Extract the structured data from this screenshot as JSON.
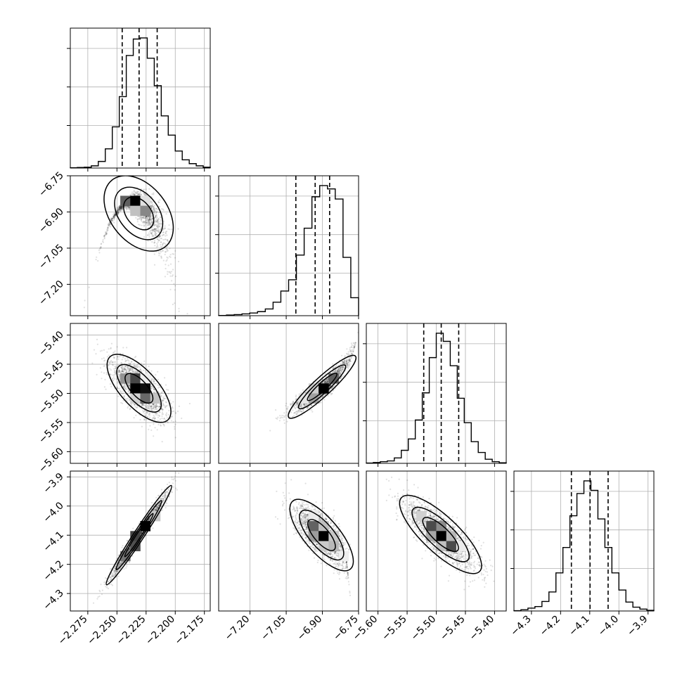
{
  "chart_data": {
    "type": "corner",
    "parameters": [
      {
        "ticks": [
          -2.275,
          -2.25,
          -2.225,
          -2.2,
          -2.175
        ],
        "tick_labels": [
          "−2.275",
          "−2.250",
          "−2.225",
          "−2.200",
          "−2.175"
        ],
        "range": [
          -2.29,
          -2.17
        ],
        "quantiles": [
          -2.2455,
          -2.231,
          -2.2155
        ],
        "histogram": [
          1,
          2,
          3,
          8,
          24,
          70,
          150,
          260,
          410,
          470,
          474,
          400,
          300,
          190,
          120,
          62,
          30,
          16,
          8,
          3
        ]
      },
      {
        "ticks": [
          -7.2,
          -7.05,
          -6.9,
          -6.75
        ],
        "tick_labels": [
          "−7.20",
          "−7.05",
          "−6.90",
          "−6.75"
        ],
        "range": [
          -7.33,
          -6.75
        ],
        "quantiles": [
          -7.01,
          -6.93,
          -6.87
        ],
        "histogram": [
          1,
          3,
          5,
          8,
          12,
          18,
          30,
          60,
          110,
          160,
          270,
          390,
          530,
          580,
          565,
          520,
          260,
          80
        ]
      },
      {
        "ticks": [
          -5.6,
          -5.55,
          -5.5,
          -5.45,
          -5.4
        ],
        "tick_labels": [
          "−5.60",
          "−5.55",
          "−5.50",
          "−5.45",
          "−5.40"
        ],
        "range": [
          -5.62,
          -5.38
        ],
        "quantiles": [
          -5.5215,
          -5.4915,
          -5.4615
        ],
        "histogram": [
          1,
          3,
          6,
          9,
          20,
          48,
          90,
          160,
          260,
          390,
          480,
          450,
          360,
          240,
          150,
          80,
          40,
          15,
          6,
          2
        ]
      },
      {
        "ticks": [
          -4.3,
          -4.2,
          -4.1,
          -4.0,
          -3.9
        ],
        "tick_labels": [
          "−4.3",
          "−4.2",
          "−4.1",
          "−4.0",
          "−3.9"
        ],
        "range": [
          -4.36,
          -3.88
        ],
        "quantiles": [
          -4.163,
          -4.099,
          -4.037
        ],
        "histogram": [
          1,
          4,
          9,
          14,
          30,
          60,
          120,
          200,
          300,
          370,
          410,
          380,
          290,
          200,
          120,
          66,
          28,
          12,
          6,
          2
        ]
      }
    ],
    "pairs": [
      {
        "x": 0,
        "y": 1,
        "relation": "curved-negative"
      },
      {
        "x": 0,
        "y": 2,
        "relation": "negative"
      },
      {
        "x": 1,
        "y": 2,
        "relation": "positive-curved"
      },
      {
        "x": 0,
        "y": 3,
        "relation": "positive-linear"
      },
      {
        "x": 1,
        "y": 3,
        "relation": "negative-curved"
      },
      {
        "x": 2,
        "y": 3,
        "relation": "negative"
      }
    ],
    "grid": true,
    "colors": {
      "line": "#000000",
      "grid": "#b0b0b0",
      "points": "#000000"
    }
  }
}
